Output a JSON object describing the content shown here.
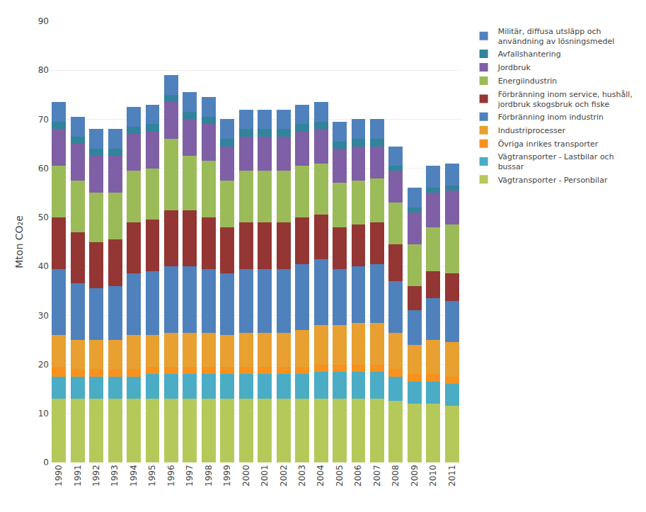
{
  "chart_data": {
    "type": "bar",
    "stacked": true,
    "ylabel": "Mton CO₂e",
    "categories": [
      "1990",
      "1991",
      "1992",
      "1993",
      "1994",
      "1995",
      "1996",
      "1997",
      "1998",
      "1999",
      "2000",
      "2001",
      "2002",
      "2003",
      "2004",
      "2005",
      "2006",
      "2007",
      "2008",
      "2009",
      "2010",
      "2011"
    ],
    "series": [
      {
        "name": "Vägtransporter - Personbilar",
        "color": "#b5c95a",
        "values": [
          13.0,
          13.0,
          13.0,
          13.0,
          13.0,
          13.0,
          13.0,
          13.0,
          13.0,
          13.0,
          13.0,
          13.0,
          13.0,
          13.0,
          13.0,
          13.0,
          13.0,
          13.0,
          12.5,
          12.0,
          12.0,
          11.5
        ]
      },
      {
        "name": "Vägtransporter - Lastbilar och\nbussar",
        "color": "#4bacc6",
        "values": [
          4.5,
          4.5,
          4.5,
          4.5,
          4.5,
          5.0,
          5.0,
          5.0,
          5.0,
          5.0,
          5.0,
          5.0,
          5.0,
          5.0,
          5.5,
          5.5,
          5.5,
          5.5,
          5.0,
          4.5,
          4.5,
          4.5
        ]
      },
      {
        "name": "Övriga inrikes transporter",
        "color": "#f7921e",
        "values": [
          2.0,
          1.5,
          1.5,
          1.5,
          1.5,
          1.5,
          1.5,
          1.5,
          1.5,
          1.5,
          1.5,
          1.5,
          1.5,
          1.5,
          1.5,
          1.5,
          1.5,
          1.5,
          1.5,
          1.5,
          1.5,
          1.5
        ]
      },
      {
        "name": "Industriprocesser",
        "color": "#e8a030",
        "values": [
          6.5,
          6.0,
          6.0,
          6.0,
          7.0,
          6.5,
          7.0,
          7.0,
          7.0,
          6.5,
          7.0,
          7.0,
          7.0,
          7.5,
          8.0,
          8.0,
          8.5,
          8.5,
          7.5,
          6.0,
          7.0,
          7.0
        ]
      },
      {
        "name": "Förbränning inom industrin",
        "color": "#4f81bd",
        "values": [
          13.5,
          11.5,
          10.5,
          11.0,
          12.5,
          13.0,
          13.5,
          13.5,
          13.0,
          12.5,
          13.0,
          13.0,
          13.0,
          13.5,
          13.5,
          11.5,
          11.5,
          12.0,
          10.5,
          7.0,
          8.5,
          8.5
        ]
      },
      {
        "name": "Förbränning inom service, hushåll,\njordbruk skogsbruk och fiske",
        "color": "#943634",
        "values": [
          10.5,
          10.5,
          9.5,
          9.5,
          10.5,
          10.5,
          11.5,
          11.5,
          10.5,
          9.5,
          9.5,
          9.5,
          9.5,
          9.5,
          9.0,
          8.5,
          8.5,
          8.5,
          7.5,
          5.0,
          5.5,
          5.5
        ]
      },
      {
        "name": "Energiindustrin",
        "color": "#9bbb59",
        "values": [
          10.5,
          10.5,
          10.0,
          9.5,
          10.5,
          10.5,
          14.5,
          11.0,
          11.5,
          9.5,
          10.5,
          10.5,
          10.5,
          10.5,
          10.5,
          9.0,
          9.0,
          9.0,
          8.5,
          8.5,
          9.0,
          10.0
        ]
      },
      {
        "name": "Jordbruk",
        "color": "#7f5fa5",
        "values": [
          7.5,
          7.5,
          7.5,
          7.5,
          7.5,
          7.5,
          7.5,
          7.5,
          7.5,
          7.0,
          7.0,
          7.0,
          7.0,
          7.0,
          7.0,
          7.0,
          7.0,
          6.5,
          6.5,
          6.5,
          7.0,
          7.0
        ]
      },
      {
        "name": "Avfallshantering",
        "color": "#31849b",
        "values": [
          1.5,
          1.5,
          1.5,
          1.5,
          1.5,
          1.5,
          1.5,
          1.5,
          1.5,
          1.5,
          1.5,
          1.5,
          1.5,
          1.5,
          1.5,
          1.5,
          1.5,
          1.5,
          1.0,
          1.0,
          1.0,
          1.0
        ]
      },
      {
        "name": "Militär, diffusa utsläpp och\nanvändning av lösningsmedel",
        "color": "#4f81bd",
        "values": [
          4.0,
          4.0,
          4.0,
          4.0,
          4.0,
          4.0,
          4.0,
          4.0,
          4.0,
          4.0,
          4.0,
          4.0,
          4.0,
          4.0,
          4.0,
          4.0,
          4.0,
          4.0,
          4.0,
          4.0,
          4.5,
          4.5
        ]
      }
    ],
    "ylim": [
      0,
      90
    ],
    "yticks": [
      0,
      10,
      20,
      30,
      40,
      50,
      60,
      70,
      80,
      90
    ],
    "grid": true,
    "legend": "right"
  }
}
